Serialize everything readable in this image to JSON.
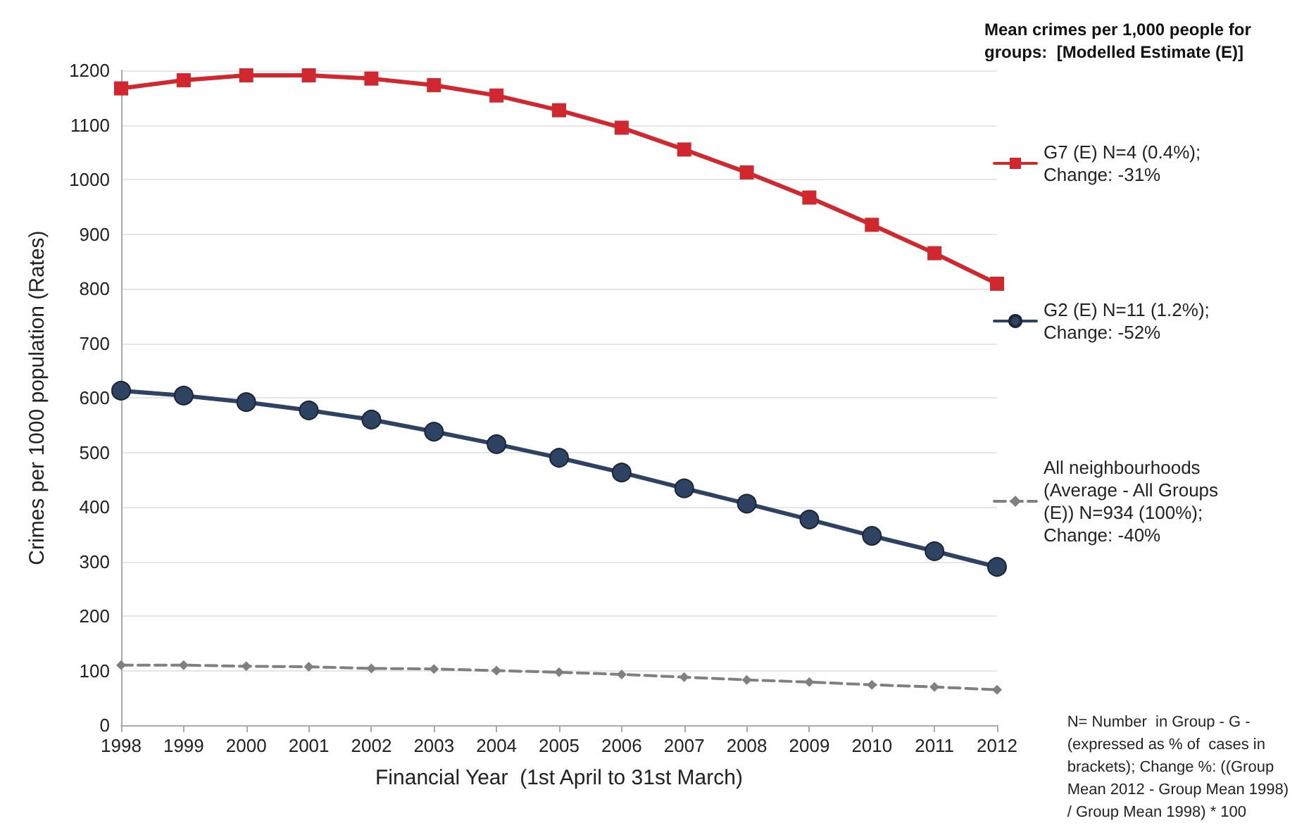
{
  "chart_data": {
    "type": "line",
    "legend_title": "Mean crimes per 1,000 people for groups:  [Modelled Estimate (E)]",
    "xlabel": "Financial Year  (1st April to 31st March)",
    "ylabel": "Crimes per 1000 population (Rates)",
    "categories": [
      "1998",
      "1999",
      "2000",
      "2001",
      "2002",
      "2003",
      "2004",
      "2005",
      "2006",
      "2007",
      "2008",
      "2009",
      "2010",
      "2011",
      "2012"
    ],
    "series": [
      {
        "name": "G7 (E) N=4 (0.4%);\nChange: -31%",
        "color": "#d0282e",
        "marker": "square",
        "line_style": "solid",
        "values": [
          1167,
          1182,
          1191,
          1191,
          1185,
          1173,
          1154,
          1127,
          1095,
          1055,
          1013,
          967,
          917,
          865,
          809
        ]
      },
      {
        "name": "G2 (E) N=11 (1.2%);\nChange: -52%",
        "color": "#2e4361",
        "marker": "circle",
        "line_style": "solid",
        "values": [
          613,
          604,
          592,
          577,
          560,
          538,
          515,
          490,
          463,
          434,
          406,
          377,
          347,
          319,
          290
        ]
      },
      {
        "name": "All neighbourhoods\n(Average - All Groups\n(E)) N=934 (100%);\nChange: -40%",
        "color": "#808080",
        "marker": "diamond",
        "line_style": "dashed",
        "values": [
          110,
          110,
          108,
          107,
          104,
          103,
          100,
          97,
          93,
          88,
          83,
          79,
          74,
          70,
          65
        ]
      }
    ],
    "ylim": [
      0,
      1200
    ],
    "yticks": [
      0,
      100,
      200,
      300,
      400,
      500,
      600,
      700,
      800,
      900,
      1000,
      1100,
      1200
    ],
    "grid": "y",
    "legend": "right",
    "annotations": [
      "N= Number  in Group - G -\n(expressed as % of  cases in\nbrackets); Change %: ((Group\nMean 2012 - Group Mean 1998)\n/ Group Mean 1998) * 100"
    ]
  }
}
